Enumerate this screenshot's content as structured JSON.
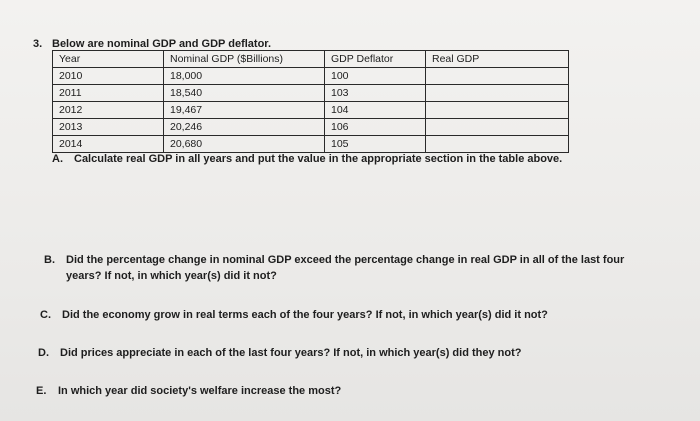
{
  "question": {
    "number": "3.",
    "intro": "Below are nominal GDP and GDP deflator."
  },
  "table": {
    "headers": [
      "Year",
      "Nominal GDP ($Billions)",
      "GDP Deflator",
      "Real GDP"
    ],
    "rows": [
      [
        "2010",
        "18,000",
        "100",
        ""
      ],
      [
        "2011",
        "18,540",
        "103",
        ""
      ],
      [
        "2012",
        "19,467",
        "104",
        ""
      ],
      [
        "2013",
        "20,246",
        "106",
        ""
      ],
      [
        "2014",
        "20,680",
        "105",
        ""
      ]
    ]
  },
  "parts": {
    "a": {
      "letter": "A.",
      "text": "Calculate real GDP in all years and put the value in the appropriate section in the table above."
    },
    "b": {
      "letter": "B.",
      "line1": "Did the percentage change in nominal GDP exceed the percentage change in real GDP in all of the last four",
      "line2": "years? If not, in which year(s) did it not?"
    },
    "c": {
      "letter": "C.",
      "text": "Did the economy grow in real terms each of the four years? If not, in which year(s) did it not?"
    },
    "d": {
      "letter": "D.",
      "text": "Did prices appreciate in each of the last four years? If not, in which year(s) did they not?"
    },
    "e": {
      "letter": "E.",
      "text": "In which year did society's welfare increase the most?"
    }
  }
}
